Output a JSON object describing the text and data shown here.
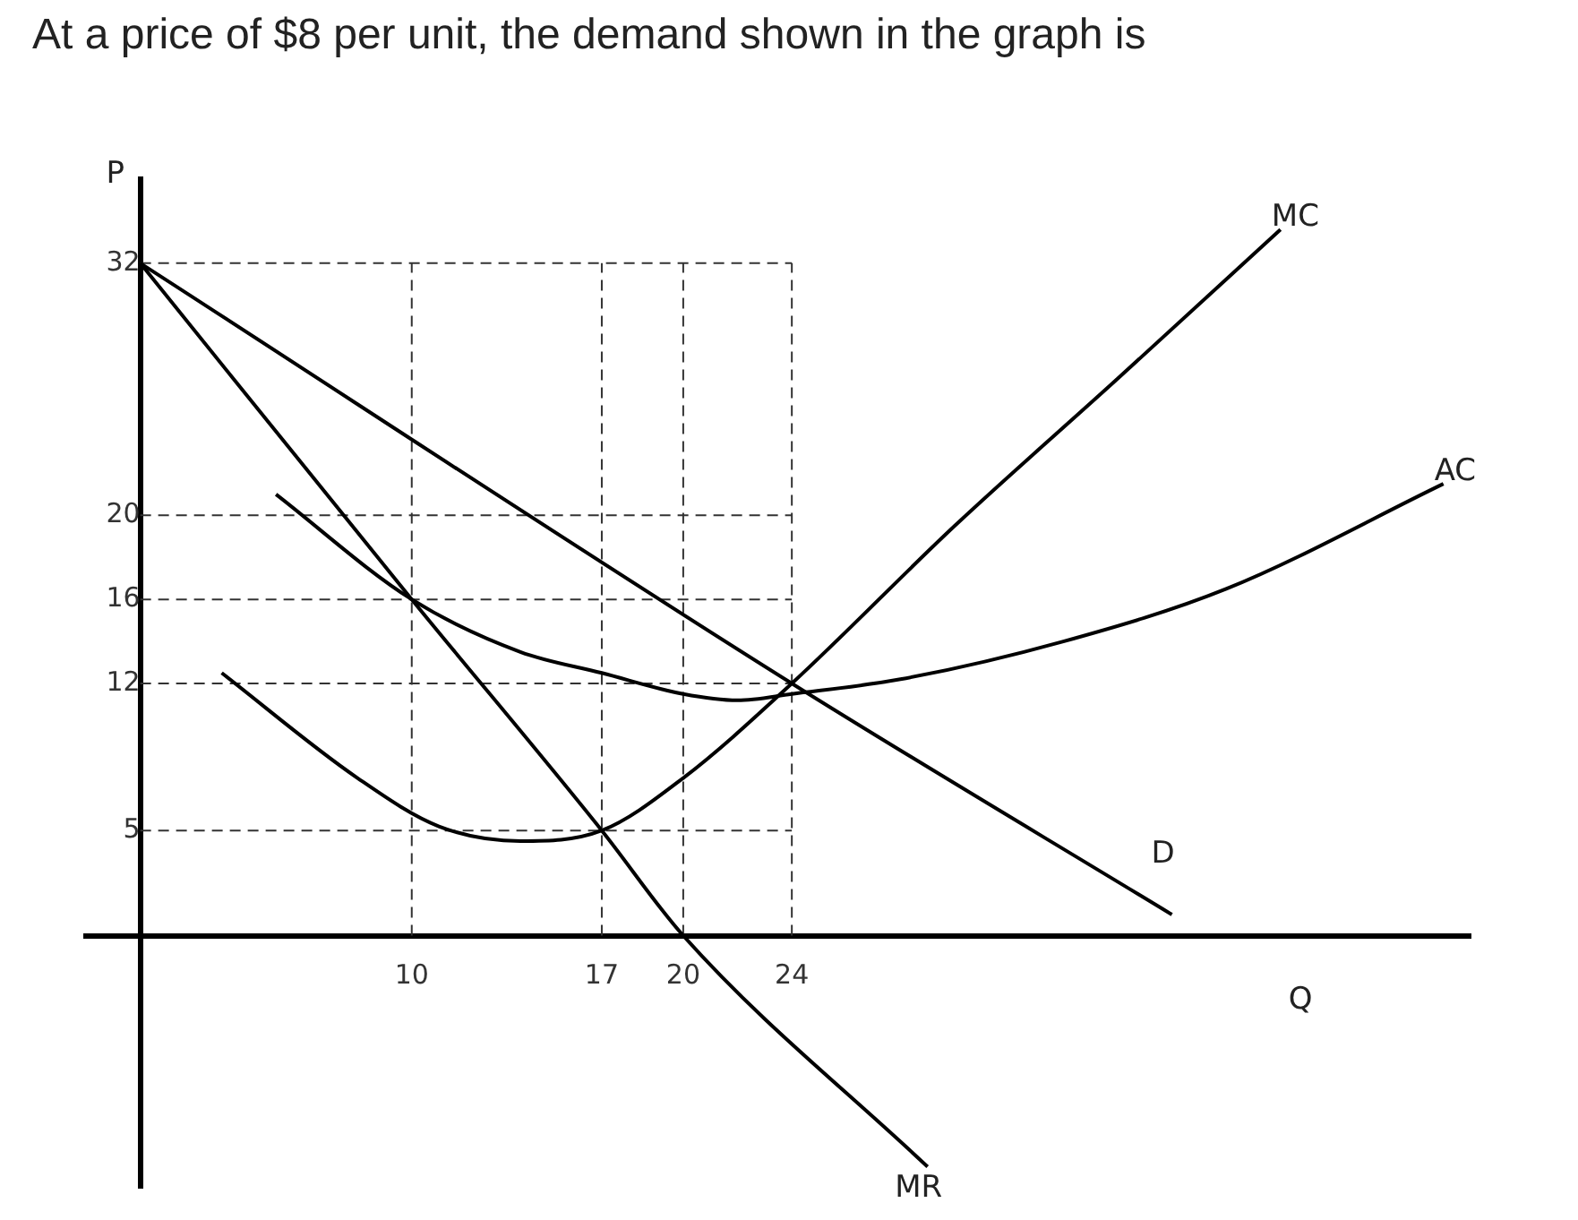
{
  "chart_data": {
    "type": "line",
    "title": "At a price of $8 per unit, the demand shown in the graph is",
    "xlabel": "Q",
    "ylabel": "P",
    "xlim": [
      -2,
      49
    ],
    "ylim": [
      -12,
      36
    ],
    "xticks": [
      10,
      17,
      20,
      24
    ],
    "yticks": [
      5,
      12,
      16,
      20,
      32
    ],
    "grid": false,
    "legend": false,
    "marker": "none",
    "line_style": "solid",
    "series": [
      {
        "name": "D",
        "color": "#000000",
        "x": [
          0,
          24,
          38
        ],
        "values": [
          32,
          12,
          1
        ]
      },
      {
        "name": "MR",
        "color": "#000000",
        "x": [
          0,
          10,
          17,
          20,
          29
        ],
        "values": [
          32,
          16,
          5,
          0,
          -11
        ]
      },
      {
        "name": "MC",
        "color": "#000000",
        "x": [
          3,
          8,
          11,
          14,
          17,
          20,
          24,
          30,
          36,
          42
        ],
        "values": [
          12.5,
          7.5,
          5.2,
          4.5,
          5,
          7.5,
          12,
          19.5,
          26.5,
          33.6
        ]
      },
      {
        "name": "AC",
        "color": "#000000",
        "x": [
          5,
          10,
          14,
          17,
          20,
          22,
          24,
          28,
          34,
          40,
          48
        ],
        "values": [
          21,
          16,
          13.5,
          12.5,
          11.5,
          11.2,
          11.5,
          12.2,
          14,
          16.5,
          21.5
        ]
      }
    ],
    "ref_lines": [
      {
        "axis": "x",
        "value": 10,
        "line_style": "dashed"
      },
      {
        "axis": "x",
        "value": 17,
        "line_style": "dashed"
      },
      {
        "axis": "x",
        "value": 20,
        "line_style": "dashed"
      },
      {
        "axis": "x",
        "value": 24,
        "line_style": "dashed"
      },
      {
        "axis": "y",
        "value": 32,
        "line_style": "dashed"
      },
      {
        "axis": "y",
        "value": 20,
        "line_style": "dashed"
      },
      {
        "axis": "y",
        "value": 16,
        "line_style": "dashed"
      },
      {
        "axis": "y",
        "value": 12,
        "line_style": "dashed"
      },
      {
        "axis": "y",
        "value": 5,
        "line_style": "dashed"
      }
    ]
  }
}
